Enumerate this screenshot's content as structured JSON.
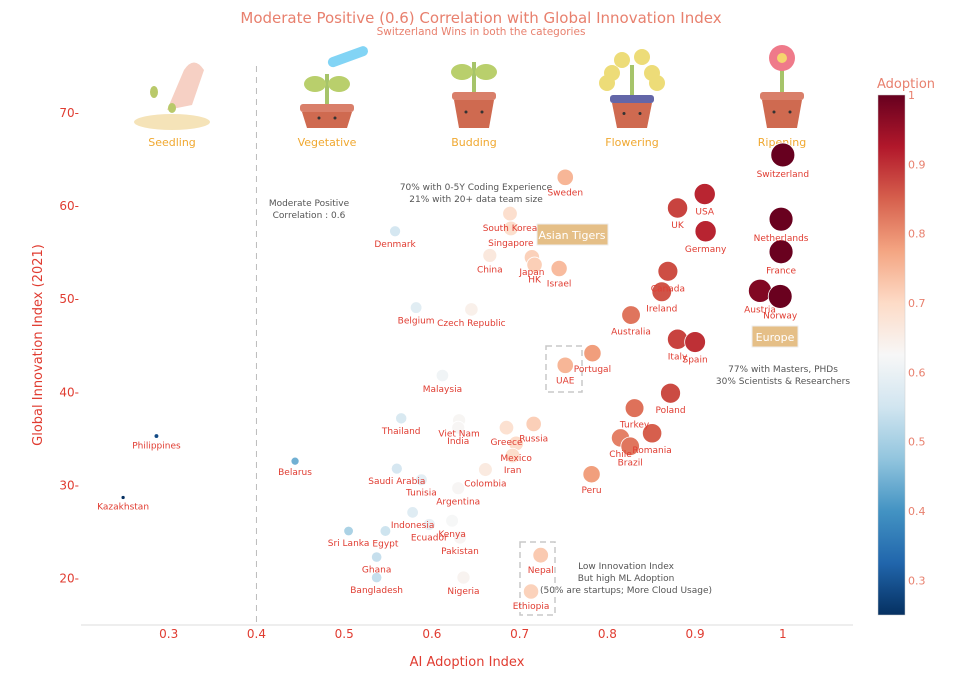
{
  "chart_data": {
    "type": "scatter",
    "title": "Moderate Positive (0.6) Correlation with Global Innovation Index",
    "subtitle": "Switzerland Wins in both the categories",
    "xlabel": "AI Adoption Index",
    "ylabel": "Global Innovation Index (2021)",
    "xlim": [
      0.2,
      1.08
    ],
    "ylim": [
      15,
      75.7
    ],
    "xticks": [
      "0.3",
      "0.4",
      "0.5",
      "0.6",
      "0.7",
      "0.8",
      "0.9",
      "1"
    ],
    "yticks": [
      "20",
      "30",
      "40",
      "50",
      "60",
      "70"
    ],
    "grid": false,
    "colorbar": {
      "title": "Adoption",
      "range": [
        0.25,
        1
      ],
      "ticks": [
        "0.3",
        "0.4",
        "0.5",
        "0.6",
        "0.7",
        "0.8",
        "0.9",
        "1"
      ],
      "colorscale": "RdBu reversed"
    },
    "points": [
      {
        "name": "Switzerland",
        "x": 1.0,
        "y": 65.5
      },
      {
        "name": "Sweden",
        "x": 0.752,
        "y": 63.1
      },
      {
        "name": "USA",
        "x": 0.911,
        "y": 61.3
      },
      {
        "name": "UK",
        "x": 0.88,
        "y": 59.8
      },
      {
        "name": "Germany",
        "x": 0.912,
        "y": 57.3
      },
      {
        "name": "Netherlands",
        "x": 0.998,
        "y": 58.6
      },
      {
        "name": "France",
        "x": 0.998,
        "y": 55.1
      },
      {
        "name": "South Korea",
        "x": 0.689,
        "y": 59.2
      },
      {
        "name": "Singapore",
        "x": 0.69,
        "y": 57.6
      },
      {
        "name": "Denmark",
        "x": 0.558,
        "y": 57.3
      },
      {
        "name": "China",
        "x": 0.666,
        "y": 54.7
      },
      {
        "name": "Japan",
        "x": 0.714,
        "y": 54.5
      },
      {
        "name": "HK",
        "x": 0.717,
        "y": 53.7
      },
      {
        "name": "Israel",
        "x": 0.745,
        "y": 53.3
      },
      {
        "name": "Canada",
        "x": 0.869,
        "y": 53.0
      },
      {
        "name": "Ireland",
        "x": 0.862,
        "y": 50.8
      },
      {
        "name": "Austria",
        "x": 0.974,
        "y": 50.9
      },
      {
        "name": "Norway",
        "x": 0.997,
        "y": 50.3
      },
      {
        "name": "Belgium",
        "x": 0.582,
        "y": 49.1
      },
      {
        "name": "Czech Republic",
        "x": 0.645,
        "y": 48.9
      },
      {
        "name": "Australia",
        "x": 0.827,
        "y": 48.3
      },
      {
        "name": "Italy",
        "x": 0.88,
        "y": 45.7
      },
      {
        "name": "Spain",
        "x": 0.9,
        "y": 45.4
      },
      {
        "name": "Portugal",
        "x": 0.783,
        "y": 44.2
      },
      {
        "name": "UAE",
        "x": 0.752,
        "y": 42.9
      },
      {
        "name": "Malaysia",
        "x": 0.612,
        "y": 41.8
      },
      {
        "name": "Poland",
        "x": 0.872,
        "y": 39.9
      },
      {
        "name": "Turkey",
        "x": 0.831,
        "y": 38.3
      },
      {
        "name": "Thailand",
        "x": 0.565,
        "y": 37.2
      },
      {
        "name": "Viet Nam",
        "x": 0.631,
        "y": 37.0
      },
      {
        "name": "India",
        "x": 0.63,
        "y": 36.2
      },
      {
        "name": "Russia",
        "x": 0.716,
        "y": 36.6
      },
      {
        "name": "Greece",
        "x": 0.685,
        "y": 36.2
      },
      {
        "name": "Romania",
        "x": 0.851,
        "y": 35.6
      },
      {
        "name": "Chile",
        "x": 0.815,
        "y": 35.1
      },
      {
        "name": "Brazil",
        "x": 0.826,
        "y": 34.2
      },
      {
        "name": "Mexico",
        "x": 0.696,
        "y": 34.5
      },
      {
        "name": "Iran",
        "x": 0.692,
        "y": 33.2
      },
      {
        "name": "Philippines",
        "x": 0.286,
        "y": 35.3
      },
      {
        "name": "Belarus",
        "x": 0.444,
        "y": 32.6
      },
      {
        "name": "Saudi Arabia",
        "x": 0.56,
        "y": 31.8
      },
      {
        "name": "Colombia",
        "x": 0.661,
        "y": 31.7
      },
      {
        "name": "Peru",
        "x": 0.782,
        "y": 31.2
      },
      {
        "name": "Tunisia",
        "x": 0.588,
        "y": 30.6
      },
      {
        "name": "Argentina",
        "x": 0.63,
        "y": 29.7
      },
      {
        "name": "Kazakhstan",
        "x": 0.248,
        "y": 28.7
      },
      {
        "name": "Indonesia",
        "x": 0.578,
        "y": 27.1
      },
      {
        "name": "Kenya",
        "x": 0.623,
        "y": 26.2
      },
      {
        "name": "Ecuador",
        "x": 0.597,
        "y": 25.8
      },
      {
        "name": "Sri Lanka",
        "x": 0.505,
        "y": 25.1
      },
      {
        "name": "Egypt",
        "x": 0.547,
        "y": 25.1
      },
      {
        "name": "Pakistan",
        "x": 0.632,
        "y": 24.4
      },
      {
        "name": "Nepal",
        "x": 0.724,
        "y": 22.5
      },
      {
        "name": "Ghana",
        "x": 0.537,
        "y": 22.3
      },
      {
        "name": "Bangladesh",
        "x": 0.537,
        "y": 20.1
      },
      {
        "name": "Nigeria",
        "x": 0.636,
        "y": 20.1
      },
      {
        "name": "Ethiopia",
        "x": 0.713,
        "y": 18.6
      }
    ],
    "stages": [
      "Seedling",
      "Vegetative",
      "Budding",
      "Flowering",
      "Ripening"
    ],
    "annotations": {
      "correlation": [
        "Moderate Positive",
        "Correlation : 0.6"
      ],
      "asia_note": [
        "70% with 0-5Y Coding Experience",
        "21% with 20+ data team size"
      ],
      "asian_tigers": "Asian Tigers",
      "europe": "Europe",
      "europe_note": [
        "77% with Masters, PHDs",
        "30% Scientists & Researchers"
      ],
      "low_note": [
        "Low Innovation Index",
        "But high ML Adoption",
        "(50% are startups; More Cloud Usage)"
      ]
    },
    "colors": {
      "title": "#e8806e",
      "label": "#e03c31",
      "stage": "#f0a830",
      "box": "#e5bf87",
      "note": "#555555"
    }
  }
}
